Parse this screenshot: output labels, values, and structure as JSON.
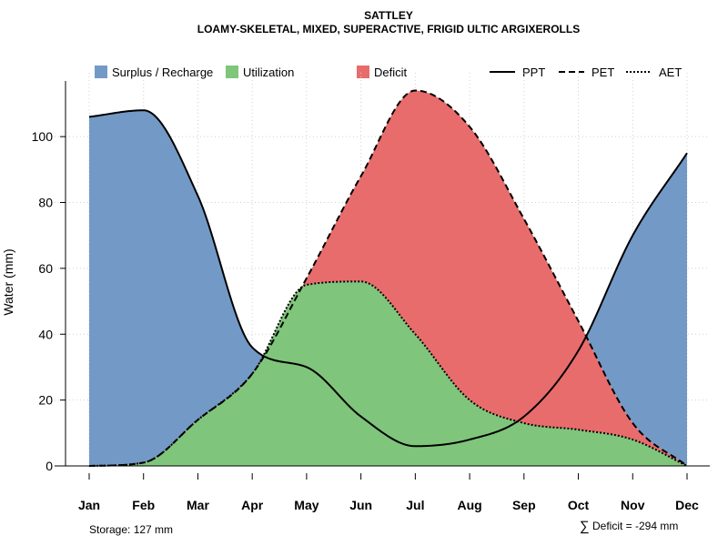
{
  "chart_data": {
    "type": "area",
    "title": "SATTLEY",
    "subtitle": "LOAMY-SKELETAL, MIXED, SUPERACTIVE, FRIGID ULTIC ARGIXEROLLS",
    "xlabel": "",
    "ylabel": "Water (mm)",
    "categories": [
      "Jan",
      "Feb",
      "Mar",
      "Apr",
      "May",
      "Jun",
      "Jul",
      "Aug",
      "Sep",
      "Oct",
      "Nov",
      "Dec"
    ],
    "ylim": [
      0,
      118
    ],
    "yticks": [
      0,
      20,
      40,
      60,
      80,
      100
    ],
    "yticks_labels": [
      "0",
      "20",
      "40",
      "60",
      "80",
      "100"
    ],
    "grid": true,
    "series": [
      {
        "name": "PPT",
        "style": "solid",
        "values": [
          106,
          108,
          82,
          36,
          30,
          15,
          6,
          8,
          15,
          35,
          70,
          95
        ]
      },
      {
        "name": "PET",
        "style": "dashed",
        "values": [
          0,
          1,
          14,
          28,
          57,
          88,
          114,
          103,
          75,
          44,
          13,
          0
        ]
      },
      {
        "name": "AET",
        "style": "dotted",
        "values": [
          0,
          1,
          14,
          28,
          55,
          56,
          40,
          20,
          13,
          11,
          8,
          0
        ]
      }
    ],
    "fills": [
      {
        "name": "Surplus / Recharge",
        "color": "#7399C6"
      },
      {
        "name": "Utilization",
        "color": "#7FC57B"
      },
      {
        "name": "Deficit",
        "color": "#E86C6C"
      }
    ],
    "legend_position": "top",
    "annotations": {
      "storage": "Storage: 127 mm",
      "deficit_symbol": "∑",
      "deficit": "Deficit = -294 mm"
    }
  }
}
